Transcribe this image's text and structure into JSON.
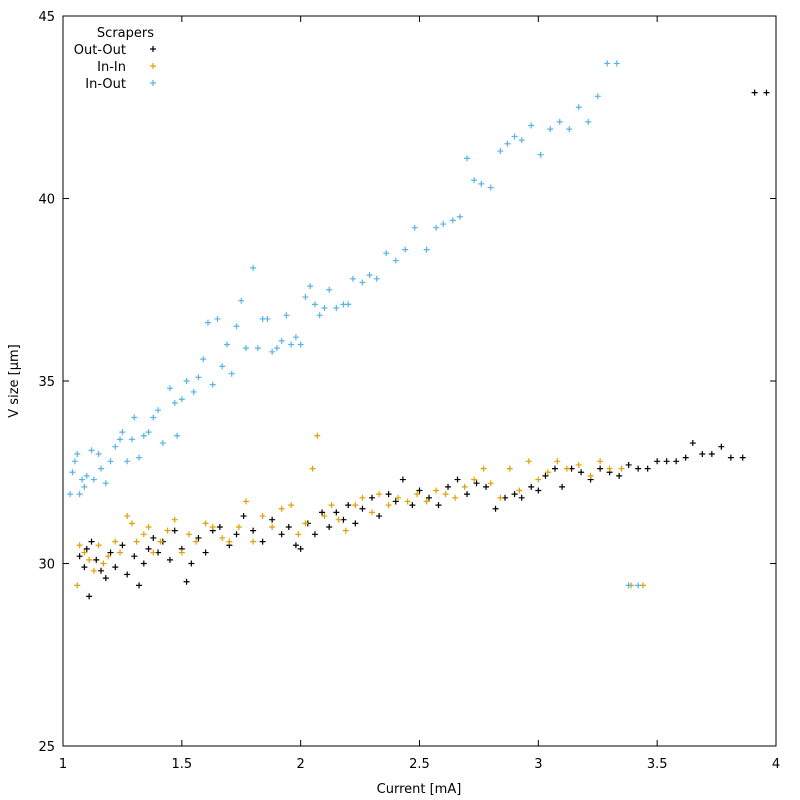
{
  "chart_data": {
    "type": "scatter",
    "xlabel": "Current [mA]",
    "ylabel": "V size [µm]",
    "xlim": [
      1,
      4
    ],
    "ylim": [
      25,
      45
    ],
    "xticks": [
      1,
      1.5,
      2,
      2.5,
      3,
      3.5,
      4
    ],
    "xtick_labels": [
      "1",
      "1.5",
      "2",
      "2.5",
      "3",
      "3.5",
      "4"
    ],
    "yticks": [
      25,
      30,
      35,
      40,
      45
    ],
    "ytick_labels": [
      "25",
      "30",
      "35",
      "40",
      "45"
    ],
    "grid": false,
    "legend": {
      "title": "Scrapers",
      "placement": "top-left"
    },
    "series": [
      {
        "name": "Out-Out",
        "color": "#000000",
        "marker": "plus",
        "points": [
          [
            1.07,
            30.2
          ],
          [
            1.09,
            29.9
          ],
          [
            1.1,
            30.4
          ],
          [
            1.11,
            29.1
          ],
          [
            1.12,
            30.6
          ],
          [
            1.14,
            30.1
          ],
          [
            1.16,
            29.8
          ],
          [
            1.18,
            29.6
          ],
          [
            1.2,
            30.3
          ],
          [
            1.22,
            29.9
          ],
          [
            1.25,
            30.5
          ],
          [
            1.27,
            29.7
          ],
          [
            1.3,
            30.2
          ],
          [
            1.32,
            29.4
          ],
          [
            1.34,
            30.0
          ],
          [
            1.36,
            30.4
          ],
          [
            1.38,
            30.7
          ],
          [
            1.4,
            30.3
          ],
          [
            1.42,
            30.6
          ],
          [
            1.45,
            30.1
          ],
          [
            1.47,
            30.9
          ],
          [
            1.5,
            30.4
          ],
          [
            1.52,
            29.5
          ],
          [
            1.54,
            30.0
          ],
          [
            1.57,
            30.7
          ],
          [
            1.6,
            30.3
          ],
          [
            1.63,
            30.9
          ],
          [
            1.66,
            31.0
          ],
          [
            1.7,
            30.5
          ],
          [
            1.73,
            30.8
          ],
          [
            1.76,
            31.3
          ],
          [
            1.8,
            30.9
          ],
          [
            1.84,
            30.6
          ],
          [
            1.88,
            31.2
          ],
          [
            1.92,
            30.8
          ],
          [
            1.95,
            31.0
          ],
          [
            1.98,
            30.5
          ],
          [
            2.0,
            30.4
          ],
          [
            2.03,
            31.1
          ],
          [
            2.06,
            30.8
          ],
          [
            2.09,
            31.4
          ],
          [
            2.12,
            31.0
          ],
          [
            2.15,
            31.4
          ],
          [
            2.18,
            31.2
          ],
          [
            2.2,
            31.6
          ],
          [
            2.23,
            31.1
          ],
          [
            2.26,
            31.5
          ],
          [
            2.3,
            31.8
          ],
          [
            2.33,
            31.3
          ],
          [
            2.37,
            31.9
          ],
          [
            2.4,
            31.7
          ],
          [
            2.43,
            32.3
          ],
          [
            2.47,
            31.6
          ],
          [
            2.5,
            32.0
          ],
          [
            2.54,
            31.8
          ],
          [
            2.58,
            31.6
          ],
          [
            2.62,
            32.1
          ],
          [
            2.66,
            32.3
          ],
          [
            2.7,
            31.9
          ],
          [
            2.74,
            32.2
          ],
          [
            2.78,
            32.1
          ],
          [
            2.82,
            31.5
          ],
          [
            2.86,
            31.8
          ],
          [
            2.9,
            31.9
          ],
          [
            2.93,
            31.8
          ],
          [
            2.97,
            32.1
          ],
          [
            3.0,
            32.0
          ],
          [
            3.03,
            32.4
          ],
          [
            3.07,
            32.6
          ],
          [
            3.1,
            32.1
          ],
          [
            3.14,
            32.6
          ],
          [
            3.18,
            32.5
          ],
          [
            3.22,
            32.3
          ],
          [
            3.26,
            32.6
          ],
          [
            3.3,
            32.5
          ],
          [
            3.34,
            32.4
          ],
          [
            3.38,
            32.7
          ],
          [
            3.42,
            32.6
          ],
          [
            3.46,
            32.6
          ],
          [
            3.5,
            32.8
          ],
          [
            3.54,
            32.8
          ],
          [
            3.58,
            32.8
          ],
          [
            3.62,
            32.9
          ],
          [
            3.65,
            33.3
          ],
          [
            3.69,
            33.0
          ],
          [
            3.73,
            33.0
          ],
          [
            3.77,
            33.2
          ],
          [
            3.81,
            32.9
          ],
          [
            3.86,
            32.9
          ],
          [
            3.91,
            42.9
          ],
          [
            3.96,
            42.9
          ]
        ]
      },
      {
        "name": "In-In",
        "color": "#e69f00",
        "marker": "plus",
        "points": [
          [
            1.06,
            29.4
          ],
          [
            1.07,
            30.5
          ],
          [
            1.09,
            30.3
          ],
          [
            1.11,
            30.1
          ],
          [
            1.13,
            29.8
          ],
          [
            1.15,
            30.5
          ],
          [
            1.17,
            30.0
          ],
          [
            1.19,
            30.2
          ],
          [
            1.22,
            30.6
          ],
          [
            1.24,
            30.3
          ],
          [
            1.27,
            31.3
          ],
          [
            1.29,
            31.1
          ],
          [
            1.31,
            30.6
          ],
          [
            1.34,
            30.8
          ],
          [
            1.36,
            31.0
          ],
          [
            1.38,
            30.3
          ],
          [
            1.41,
            30.6
          ],
          [
            1.44,
            30.9
          ],
          [
            1.47,
            31.2
          ],
          [
            1.5,
            30.3
          ],
          [
            1.53,
            30.8
          ],
          [
            1.56,
            30.6
          ],
          [
            1.6,
            31.1
          ],
          [
            1.63,
            31.0
          ],
          [
            1.67,
            30.7
          ],
          [
            1.7,
            30.6
          ],
          [
            1.74,
            31.0
          ],
          [
            1.77,
            31.7
          ],
          [
            1.8,
            30.6
          ],
          [
            1.84,
            31.3
          ],
          [
            1.88,
            31.0
          ],
          [
            1.92,
            31.5
          ],
          [
            1.96,
            31.6
          ],
          [
            1.99,
            30.8
          ],
          [
            2.02,
            31.1
          ],
          [
            2.05,
            32.6
          ],
          [
            2.07,
            33.5
          ],
          [
            2.1,
            31.3
          ],
          [
            2.13,
            31.6
          ],
          [
            2.16,
            31.2
          ],
          [
            2.19,
            30.9
          ],
          [
            2.23,
            31.6
          ],
          [
            2.26,
            31.8
          ],
          [
            2.3,
            31.4
          ],
          [
            2.33,
            31.9
          ],
          [
            2.37,
            31.6
          ],
          [
            2.41,
            31.8
          ],
          [
            2.45,
            31.7
          ],
          [
            2.49,
            31.9
          ],
          [
            2.53,
            31.7
          ],
          [
            2.57,
            32.0
          ],
          [
            2.61,
            31.9
          ],
          [
            2.65,
            31.8
          ],
          [
            2.69,
            32.1
          ],
          [
            2.73,
            32.3
          ],
          [
            2.77,
            32.6
          ],
          [
            2.8,
            32.2
          ],
          [
            2.84,
            31.8
          ],
          [
            2.88,
            32.6
          ],
          [
            2.92,
            32.0
          ],
          [
            2.96,
            32.8
          ],
          [
            3.0,
            32.3
          ],
          [
            3.04,
            32.5
          ],
          [
            3.08,
            32.8
          ],
          [
            3.12,
            32.6
          ],
          [
            3.17,
            32.7
          ],
          [
            3.22,
            32.4
          ],
          [
            3.26,
            32.8
          ],
          [
            3.3,
            32.6
          ],
          [
            3.35,
            32.6
          ],
          [
            3.39,
            29.4
          ],
          [
            3.44,
            29.4
          ]
        ]
      },
      {
        "name": "In-Out",
        "color": "#56b4e9",
        "marker": "plus",
        "points": [
          [
            1.03,
            31.9
          ],
          [
            1.04,
            32.5
          ],
          [
            1.05,
            32.8
          ],
          [
            1.06,
            33.0
          ],
          [
            1.07,
            31.9
          ],
          [
            1.08,
            32.3
          ],
          [
            1.09,
            32.1
          ],
          [
            1.1,
            32.4
          ],
          [
            1.12,
            33.1
          ],
          [
            1.13,
            32.3
          ],
          [
            1.15,
            33.0
          ],
          [
            1.16,
            32.6
          ],
          [
            1.18,
            32.2
          ],
          [
            1.2,
            32.8
          ],
          [
            1.22,
            33.2
          ],
          [
            1.24,
            33.4
          ],
          [
            1.25,
            33.6
          ],
          [
            1.27,
            32.8
          ],
          [
            1.29,
            33.4
          ],
          [
            1.3,
            34.0
          ],
          [
            1.32,
            32.9
          ],
          [
            1.34,
            33.5
          ],
          [
            1.36,
            33.6
          ],
          [
            1.38,
            34.0
          ],
          [
            1.4,
            34.2
          ],
          [
            1.42,
            33.3
          ],
          [
            1.45,
            34.8
          ],
          [
            1.47,
            34.4
          ],
          [
            1.48,
            33.5
          ],
          [
            1.5,
            34.5
          ],
          [
            1.52,
            35.0
          ],
          [
            1.55,
            34.7
          ],
          [
            1.57,
            35.1
          ],
          [
            1.59,
            35.6
          ],
          [
            1.61,
            36.6
          ],
          [
            1.63,
            34.9
          ],
          [
            1.65,
            36.7
          ],
          [
            1.67,
            35.4
          ],
          [
            1.69,
            36.0
          ],
          [
            1.71,
            35.2
          ],
          [
            1.73,
            36.5
          ],
          [
            1.75,
            37.2
          ],
          [
            1.77,
            35.9
          ],
          [
            1.8,
            38.1
          ],
          [
            1.82,
            35.9
          ],
          [
            1.84,
            36.7
          ],
          [
            1.86,
            36.7
          ],
          [
            1.88,
            35.8
          ],
          [
            1.9,
            35.9
          ],
          [
            1.92,
            36.1
          ],
          [
            1.94,
            36.8
          ],
          [
            1.96,
            36.0
          ],
          [
            1.98,
            36.2
          ],
          [
            2.0,
            36.0
          ],
          [
            2.02,
            37.3
          ],
          [
            2.04,
            37.6
          ],
          [
            2.06,
            37.1
          ],
          [
            2.08,
            36.8
          ],
          [
            2.1,
            37.0
          ],
          [
            2.12,
            37.5
          ],
          [
            2.15,
            37.0
          ],
          [
            2.18,
            37.1
          ],
          [
            2.2,
            37.1
          ],
          [
            2.22,
            37.8
          ],
          [
            2.26,
            37.7
          ],
          [
            2.29,
            37.9
          ],
          [
            2.32,
            37.8
          ],
          [
            2.36,
            38.5
          ],
          [
            2.4,
            38.3
          ],
          [
            2.44,
            38.6
          ],
          [
            2.48,
            39.2
          ],
          [
            2.53,
            38.6
          ],
          [
            2.57,
            39.2
          ],
          [
            2.6,
            39.3
          ],
          [
            2.64,
            39.4
          ],
          [
            2.67,
            39.5
          ],
          [
            2.7,
            41.1
          ],
          [
            2.73,
            40.5
          ],
          [
            2.76,
            40.4
          ],
          [
            2.8,
            40.3
          ],
          [
            2.84,
            41.3
          ],
          [
            2.87,
            41.5
          ],
          [
            2.9,
            41.7
          ],
          [
            2.93,
            41.6
          ],
          [
            2.97,
            42.0
          ],
          [
            3.01,
            41.2
          ],
          [
            3.05,
            41.9
          ],
          [
            3.09,
            42.1
          ],
          [
            3.13,
            41.9
          ],
          [
            3.17,
            42.5
          ],
          [
            3.21,
            42.1
          ],
          [
            3.25,
            42.8
          ],
          [
            3.29,
            43.7
          ],
          [
            3.33,
            43.7
          ],
          [
            3.38,
            29.4
          ],
          [
            3.42,
            29.4
          ]
        ]
      }
    ]
  }
}
